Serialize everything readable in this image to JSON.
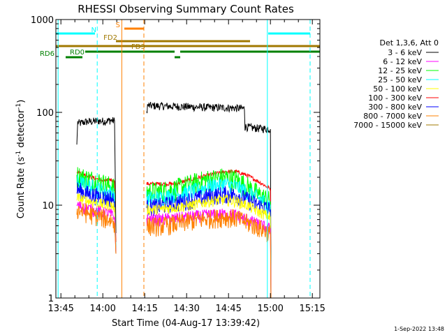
{
  "chart_data": {
    "type": "line",
    "title": "RHESSI Observing Summary Count Rates",
    "xlabel": "Start Time (04-Aug-17 13:39:42)",
    "ylabel_main": "Count Rate (s",
    "ylabel_sup1": "-1",
    "ylabel_mid": " detector",
    "ylabel_sup2": "-1",
    "ylabel_end": ")",
    "yscale": "log",
    "ylim": [
      1,
      1000
    ],
    "xlim_minutes": [
      3.5,
      98
    ],
    "x_ticks": [
      {
        "m": 5.3,
        "label": "13:45"
      },
      {
        "m": 20.3,
        "label": "14:00"
      },
      {
        "m": 35.3,
        "label": "14:15"
      },
      {
        "m": 50.3,
        "label": "14:30"
      },
      {
        "m": 65.3,
        "label": "14:45"
      },
      {
        "m": 80.3,
        "label": "15:00"
      },
      {
        "m": 95.3,
        "label": "15:15"
      }
    ],
    "y_ticks": [
      {
        "v": 1,
        "label": "1"
      },
      {
        "v": 10,
        "label": "10"
      },
      {
        "v": 100,
        "label": "100"
      },
      {
        "v": 1000,
        "label": "1000"
      }
    ],
    "legend_header": "Det 1,3,6, Att 0",
    "legend": [
      {
        "label": "3 - 6 keV",
        "color": "#000000"
      },
      {
        "label": "6 - 12 keV",
        "color": "#ff00ff"
      },
      {
        "label": "12 - 25 keV",
        "color": "#00ff00"
      },
      {
        "label": "25 - 50 keV",
        "color": "#00ffff"
      },
      {
        "label": "50 - 100 keV",
        "color": "#ffff00"
      },
      {
        "label": "100 - 300 keV",
        "color": "#ff0000"
      },
      {
        "label": "300 - 800 keV",
        "color": "#0000ff"
      },
      {
        "label": "800 - 7000 keV",
        "color": "#ff8000"
      },
      {
        "label": "7000 - 15000 keV",
        "color": "#a07800"
      }
    ],
    "series": [
      {
        "name": "3 - 6 keV",
        "color": "#000000",
        "segments": [
          [
            [
              11,
              45
            ],
            [
              11.3,
              78
            ],
            [
              12,
              76
            ],
            [
              14,
              79
            ],
            [
              17,
              80
            ],
            [
              19,
              81
            ],
            [
              21,
              80
            ],
            [
              23,
              82
            ],
            [
              24.5,
              81
            ],
            [
              25,
              5
            ]
          ],
          [
            [
              36,
              100
            ],
            [
              36.3,
              118
            ],
            [
              42,
              117
            ],
            [
              50,
              115
            ],
            [
              58,
              113
            ],
            [
              66,
              112
            ],
            [
              71,
              110
            ],
            [
              71.2,
              70
            ],
            [
              74,
              68
            ],
            [
              77,
              67
            ],
            [
              80.3,
              66
            ],
            [
              80.5,
              1
            ]
          ]
        ]
      },
      {
        "name": "100 - 300 keV",
        "color": "#ff0000",
        "segments": [
          [
            [
              11,
              23
            ],
            [
              13,
              22
            ],
            [
              16,
              20
            ],
            [
              19,
              19
            ],
            [
              21,
              18
            ],
            [
              23,
              19
            ],
            [
              24.5,
              18
            ],
            [
              25,
              4
            ]
          ],
          [
            [
              36,
              17
            ],
            [
              40,
              17
            ],
            [
              46,
              17
            ],
            [
              52,
              19
            ],
            [
              58,
              21
            ],
            [
              64,
              23
            ],
            [
              68,
              23
            ],
            [
              72,
              21
            ],
            [
              76,
              18
            ],
            [
              80.3,
              15
            ],
            [
              80.5,
              1
            ]
          ]
        ]
      },
      {
        "name": "12 - 25 keV",
        "color": "#00ff00",
        "segments": [
          [
            [
              11,
              21
            ],
            [
              13,
              20
            ],
            [
              16,
              19
            ],
            [
              19,
              18
            ],
            [
              21,
              17
            ],
            [
              23,
              16
            ],
            [
              24.5,
              15
            ],
            [
              25,
              3
            ]
          ],
          [
            [
              36,
              14
            ],
            [
              40,
              14
            ],
            [
              46,
              15
            ],
            [
              52,
              17
            ],
            [
              58,
              19
            ],
            [
              64,
              20
            ],
            [
              68,
              19
            ],
            [
              72,
              16
            ],
            [
              76,
              13
            ],
            [
              80.3,
              11
            ],
            [
              80.5,
              1
            ]
          ]
        ]
      },
      {
        "name": "25 - 50 keV",
        "color": "#00ffff",
        "segments": [
          [
            [
              11,
              18
            ],
            [
              13,
              17
            ],
            [
              16,
              16
            ],
            [
              19,
              15
            ],
            [
              21,
              14
            ],
            [
              23,
              14
            ],
            [
              24.5,
              13
            ],
            [
              25,
              3
            ]
          ],
          [
            [
              36,
              12
            ],
            [
              40,
              12
            ],
            [
              46,
              13
            ],
            [
              52,
              14
            ],
            [
              58,
              16
            ],
            [
              64,
              17
            ],
            [
              68,
              16
            ],
            [
              72,
              14
            ],
            [
              76,
              12
            ],
            [
              80.3,
              10
            ],
            [
              80.5,
              1
            ]
          ]
        ]
      },
      {
        "name": "300 - 800 keV",
        "color": "#0000ff",
        "segments": [
          [
            [
              11,
              15
            ],
            [
              13,
              14
            ],
            [
              16,
              13
            ],
            [
              19,
              12.5
            ],
            [
              21,
              12
            ],
            [
              23,
              12
            ],
            [
              24.5,
              11
            ],
            [
              25,
              3
            ]
          ],
          [
            [
              36,
              9.5
            ],
            [
              40,
              9.8
            ],
            [
              46,
              10.5
            ],
            [
              52,
              11.5
            ],
            [
              58,
              12.5
            ],
            [
              64,
              13.2
            ],
            [
              68,
              13
            ],
            [
              72,
              11.5
            ],
            [
              76,
              10
            ],
            [
              80.3,
              9
            ],
            [
              80.5,
              1
            ]
          ]
        ]
      },
      {
        "name": "50 - 100 keV",
        "color": "#ffff00",
        "segments": [
          [
            [
              11,
              12
            ],
            [
              13,
              11.5
            ],
            [
              16,
              11
            ],
            [
              19,
              10.5
            ],
            [
              21,
              10
            ],
            [
              23,
              10
            ],
            [
              24.5,
              9.5
            ],
            [
              25,
              3
            ]
          ],
          [
            [
              36,
              9
            ],
            [
              40,
              9
            ],
            [
              46,
              9.5
            ],
            [
              52,
              10
            ],
            [
              58,
              11
            ],
            [
              64,
              11.5
            ],
            [
              68,
              11
            ],
            [
              72,
              10
            ],
            [
              76,
              8.5
            ],
            [
              80.3,
              7.5
            ],
            [
              80.5,
              1
            ]
          ]
        ]
      },
      {
        "name": "6 - 12 keV",
        "color": "#ff00ff",
        "segments": [
          [
            [
              11,
              10
            ],
            [
              13,
              9.5
            ],
            [
              16,
              9
            ],
            [
              19,
              8.5
            ],
            [
              21,
              8.2
            ],
            [
              23,
              8
            ],
            [
              24.5,
              7.5
            ],
            [
              25,
              3
            ]
          ],
          [
            [
              36,
              7
            ],
            [
              40,
              7
            ],
            [
              46,
              7.2
            ],
            [
              52,
              7.5
            ],
            [
              58,
              7.8
            ],
            [
              64,
              8
            ],
            [
              68,
              7.8
            ],
            [
              72,
              7
            ],
            [
              76,
              6.2
            ],
            [
              80.3,
              5.5
            ],
            [
              80.5,
              1
            ]
          ]
        ]
      },
      {
        "name": "800 - 7000 keV",
        "color": "#ff8000",
        "segments": [
          [
            [
              11,
              9
            ],
            [
              13,
              8.6
            ],
            [
              16,
              8
            ],
            [
              19,
              7.6
            ],
            [
              21,
              7.2
            ],
            [
              23,
              7
            ],
            [
              24.5,
              6.5
            ],
            [
              25,
              3
            ]
          ],
          [
            [
              36,
              6
            ],
            [
              40,
              6
            ],
            [
              46,
              6.3
            ],
            [
              52,
              6.8
            ],
            [
              58,
              7.2
            ],
            [
              64,
              7.5
            ],
            [
              68,
              7.3
            ],
            [
              72,
              6.5
            ],
            [
              76,
              5.8
            ],
            [
              80.3,
              5
            ],
            [
              80.5,
              1
            ]
          ]
        ]
      }
    ],
    "noise_amplitude": [
      0.1,
      0.05,
      0.28,
      0.2,
      0.22,
      0.14,
      0.16,
      0.24
    ],
    "vlines": [
      {
        "m": 4.3,
        "color": "#00ffff",
        "dash": false
      },
      {
        "m": 18.3,
        "color": "#00ffff",
        "dash": true
      },
      {
        "m": 27.1,
        "color": "#ff8000",
        "dash": false
      },
      {
        "m": 35.0,
        "color": "#ff8000",
        "dash": true
      },
      {
        "m": 79.2,
        "color": "#00ffff",
        "dash": false
      },
      {
        "m": 94.5,
        "color": "#00ffff",
        "dash": true
      }
    ],
    "flag_bars": [
      {
        "label": "N",
        "color": "#00ffff",
        "lane": 0,
        "spans": [
          [
            3.5,
            17.5
          ],
          [
            79.5,
            94.5
          ]
        ],
        "label_m": 18.5,
        "label_side": "before"
      },
      {
        "label": "S",
        "color": "#ff8000",
        "lane": 1,
        "spans": [
          [
            28,
            35
          ]
        ],
        "label_m": 27,
        "label_side": "before"
      },
      {
        "label": "FD2",
        "color": "#a07800",
        "lane": 2,
        "spans": [
          [
            25,
            73
          ]
        ],
        "label_m": 26,
        "label_side": "before"
      },
      {
        "label": "FD3",
        "color": "#a07800",
        "lane": 3,
        "spans": [
          [
            3.5,
            98
          ]
        ],
        "label_m": 30,
        "label_side": "after"
      },
      {
        "label": "RD0",
        "color": "#008000",
        "lane": 4,
        "spans": [
          [
            14,
            46
          ],
          [
            48,
            98
          ]
        ],
        "label_m": 8,
        "label_side": "after"
      },
      {
        "label": "RD6",
        "color": "#008000",
        "lane": 5,
        "spans": [
          [
            7,
            13
          ],
          [
            46,
            48
          ]
        ],
        "label_m": 3.5,
        "label_side": "before"
      }
    ],
    "footer_stamp": "1-Sep-2022 13:48"
  }
}
